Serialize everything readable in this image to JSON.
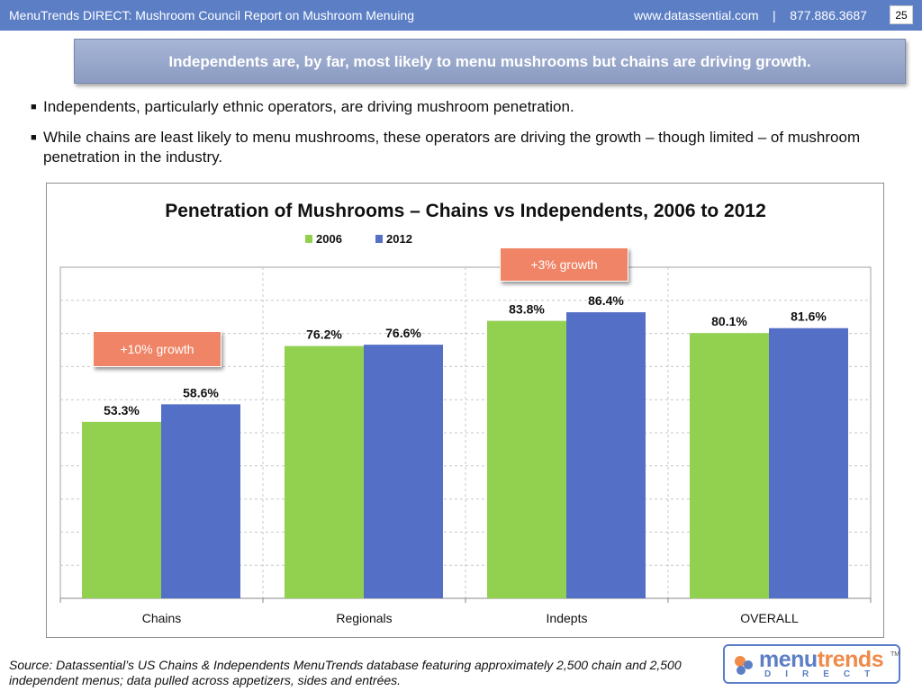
{
  "header": {
    "title": "MenuTrends DIRECT: Mushroom Council Report on Mushroom Menuing",
    "contact": "www.datassential.com    |    877.886.3687",
    "page_number": "25"
  },
  "banner": "Independents are, by far, most likely to menu mushrooms but chains are driving growth.",
  "bullets": [
    "Independents, particularly ethnic operators, are driving mushroom penetration.",
    "While chains are least likely to menu mushrooms, these operators are driving the growth – though limited – of mushroom penetration in the industry."
  ],
  "chart_data": {
    "type": "bar",
    "title": "Penetration of Mushrooms – Chains vs Independents, 2006 to 2012",
    "categories": [
      "Chains",
      "Regionals",
      "Indepts",
      "OVERALL"
    ],
    "series": [
      {
        "name": "2006",
        "values": [
          53.3,
          76.2,
          83.8,
          80.1
        ],
        "labels": [
          "53.3%",
          "76.2%",
          "83.8%",
          "80.1%"
        ],
        "color": "#92d050"
      },
      {
        "name": "2012",
        "values": [
          58.6,
          76.6,
          86.4,
          81.6
        ],
        "labels": [
          "58.6%",
          "76.6%",
          "86.4%",
          "81.6%"
        ],
        "color": "#5470c6"
      }
    ],
    "ylim": [
      0,
      100
    ],
    "grid": true,
    "legend_position": "top-center",
    "annotations": [
      "+10% growth",
      "+3% growth"
    ],
    "annotation_color": "#f08466"
  },
  "source": "Source: Datassential’s US Chains & Independents MenuTrends database featuring approximately 2,500 chain and 2,500 independent menus; data pulled across appetizers, sides and entrées.",
  "logo": {
    "part1": "menu",
    "part2": "trends",
    "tm": "TM",
    "sub": "DIRECT"
  }
}
